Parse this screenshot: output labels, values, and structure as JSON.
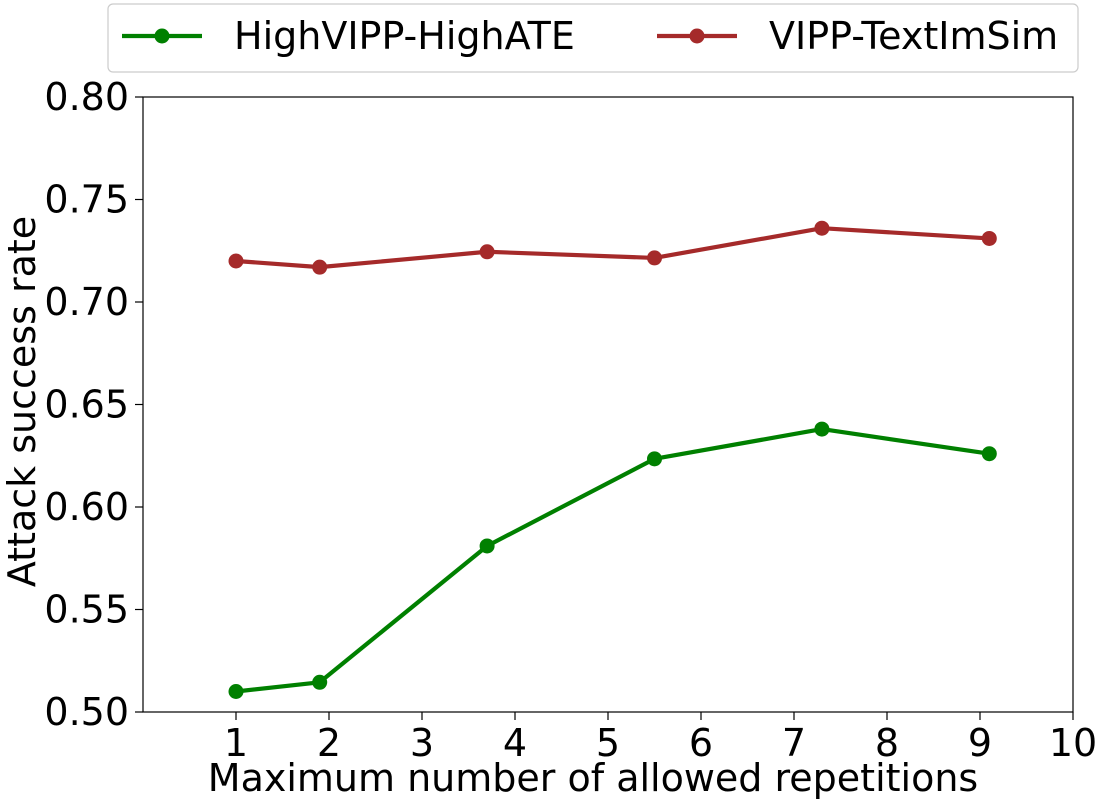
{
  "chart_data": {
    "type": "line",
    "title": "",
    "xlabel": "Maximum number of allowed repetitions",
    "ylabel": "Attack success rate",
    "xlim": [
      0,
      10
    ],
    "ylim": [
      0.5,
      0.8
    ],
    "x_ticks": [
      1,
      2,
      3,
      4,
      5,
      6,
      7,
      8,
      9,
      10
    ],
    "x_tick_labels": [
      "1",
      "2",
      "3",
      "4",
      "5",
      "6",
      "7",
      "8",
      "9",
      "10"
    ],
    "y_ticks": [
      0.5,
      0.55,
      0.6,
      0.65,
      0.7,
      0.75,
      0.8
    ],
    "y_tick_labels": [
      "0.50",
      "0.55",
      "0.60",
      "0.65",
      "0.70",
      "0.75",
      "0.80"
    ],
    "grid": false,
    "legend_position": "top, outside plot",
    "series": [
      {
        "name": "HighVIPP-HighATE",
        "color": "#008000",
        "x": [
          1,
          1.9,
          3.7,
          5.5,
          7.3,
          9.1
        ],
        "y": [
          0.51,
          0.5145,
          0.581,
          0.6235,
          0.638,
          0.626
        ]
      },
      {
        "name": "VIPP-TextImSim",
        "color": "#a52a2a",
        "x": [
          1,
          1.9,
          3.7,
          5.5,
          7.3,
          9.1
        ],
        "y": [
          0.72,
          0.717,
          0.7245,
          0.7215,
          0.736,
          0.731
        ]
      }
    ]
  }
}
